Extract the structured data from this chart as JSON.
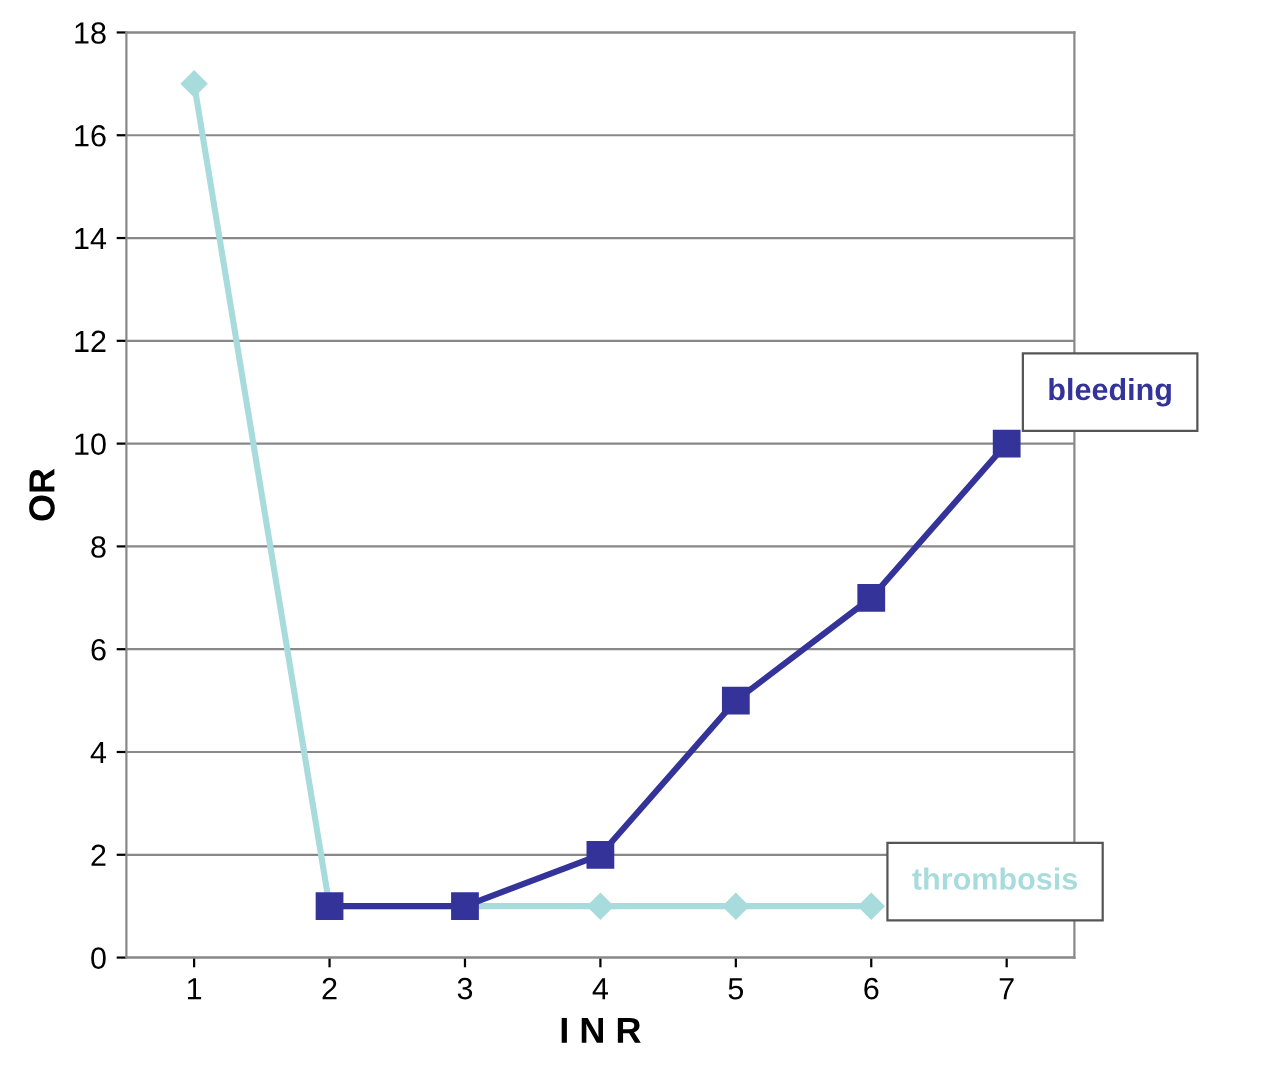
{
  "chart_data": {
    "type": "line",
    "xlabel": "I N R",
    "ylabel": "OR",
    "categories": [
      "1",
      "2",
      "3",
      "4",
      "5",
      "6",
      "7"
    ],
    "series": [
      {
        "name": "thrombosis",
        "color": "#a8dcdc",
        "marker": "diamond",
        "values": [
          17,
          1,
          1,
          1,
          1,
          1,
          null
        ]
      },
      {
        "name": "bleeding",
        "color": "#333399",
        "marker": "square",
        "values": [
          null,
          1,
          1,
          2,
          5,
          7,
          10
        ]
      }
    ],
    "ylim": [
      0,
      18
    ],
    "yticks": [
      0,
      2,
      4,
      6,
      8,
      10,
      12,
      14,
      16,
      18
    ],
    "grid": "y",
    "legend": false,
    "line_style": "solid"
  }
}
